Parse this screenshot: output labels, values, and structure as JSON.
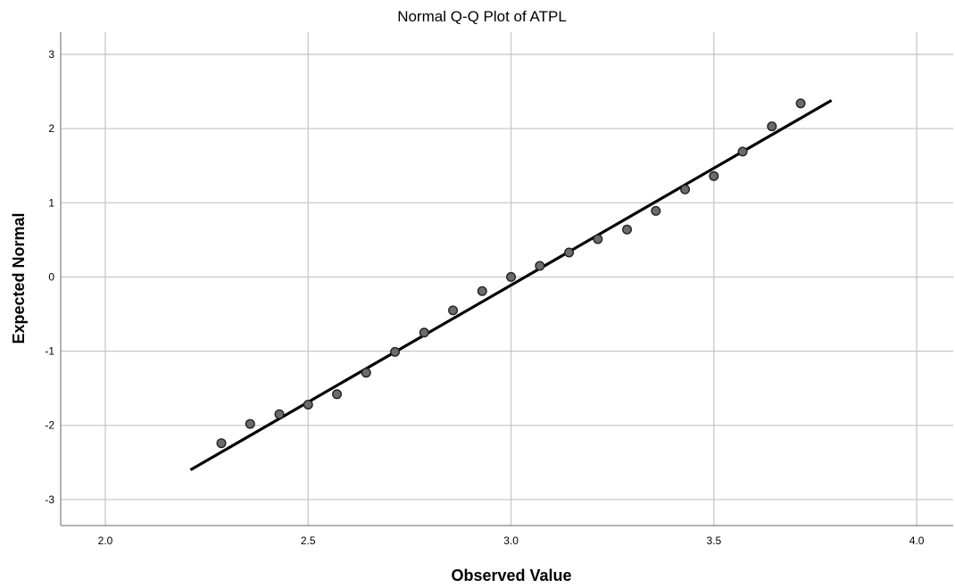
{
  "chart_data": {
    "type": "scatter",
    "title": "Normal Q-Q Plot of ATPL",
    "xlabel": "Observed Value",
    "ylabel": "Expected Normal",
    "xlim": [
      1.89,
      4.09
    ],
    "ylim": [
      -3.35,
      3.3
    ],
    "x_ticks": [
      2.0,
      2.5,
      3.0,
      3.5,
      4.0
    ],
    "x_tick_labels": [
      "2.0",
      "2.5",
      "3.0",
      "3.5",
      "4.0"
    ],
    "y_ticks": [
      3,
      2,
      1,
      0,
      -1,
      -2,
      -3
    ],
    "y_tick_labels": [
      "3",
      "2",
      "1",
      "0",
      "-1",
      "-2",
      "-3"
    ],
    "grid": true,
    "points": [
      {
        "x": 2.286,
        "y": -2.24
      },
      {
        "x": 2.357,
        "y": -1.98
      },
      {
        "x": 2.429,
        "y": -1.85
      },
      {
        "x": 2.5,
        "y": -1.72
      },
      {
        "x": 2.571,
        "y": -1.58
      },
      {
        "x": 2.643,
        "y": -1.29
      },
      {
        "x": 2.714,
        "y": -1.01
      },
      {
        "x": 2.786,
        "y": -0.75
      },
      {
        "x": 2.857,
        "y": -0.45
      },
      {
        "x": 2.929,
        "y": -0.19
      },
      {
        "x": 3.0,
        "y": 0.0
      },
      {
        "x": 3.071,
        "y": 0.15
      },
      {
        "x": 3.143,
        "y": 0.33
      },
      {
        "x": 3.214,
        "y": 0.51
      },
      {
        "x": 3.286,
        "y": 0.64
      },
      {
        "x": 3.357,
        "y": 0.89
      },
      {
        "x": 3.429,
        "y": 1.18
      },
      {
        "x": 3.5,
        "y": 1.36
      },
      {
        "x": 3.571,
        "y": 1.69
      },
      {
        "x": 3.643,
        "y": 2.03
      },
      {
        "x": 3.714,
        "y": 2.34
      }
    ],
    "reference_line": {
      "x": [
        2.21,
        3.79
      ],
      "y": [
        -2.6,
        2.38
      ]
    },
    "colors": {
      "point_fill": "#6b6b6b",
      "point_stroke": "#222222",
      "line": "#000000",
      "grid": "#c8c8c8"
    }
  }
}
